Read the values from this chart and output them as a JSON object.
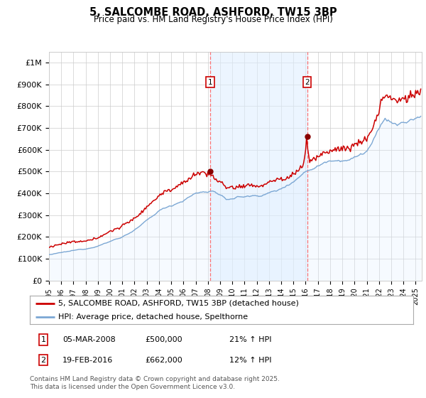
{
  "title": "5, SALCOMBE ROAD, ASHFORD, TW15 3BP",
  "subtitle": "Price paid vs. HM Land Registry's House Price Index (HPI)",
  "ylabel_ticks": [
    "£0",
    "£100K",
    "£200K",
    "£300K",
    "£400K",
    "£500K",
    "£600K",
    "£700K",
    "£800K",
    "£900K",
    "£1M"
  ],
  "ytick_values": [
    0,
    100000,
    200000,
    300000,
    400000,
    500000,
    600000,
    700000,
    800000,
    900000,
    1000000
  ],
  "ylim": [
    0,
    1050000
  ],
  "xlim_start": 1995.0,
  "xlim_end": 2025.5,
  "sale1_x": 2008.17,
  "sale1_y": 500000,
  "sale2_x": 2016.12,
  "sale2_y": 662000,
  "legend_line1": "5, SALCOMBE ROAD, ASHFORD, TW15 3BP (detached house)",
  "legend_line2": "HPI: Average price, detached house, Spelthorne",
  "table_row1": [
    "1",
    "05-MAR-2008",
    "£500,000",
    "21% ↑ HPI"
  ],
  "table_row2": [
    "2",
    "19-FEB-2016",
    "£662,000",
    "12% ↑ HPI"
  ],
  "footnote": "Contains HM Land Registry data © Crown copyright and database right 2025.\nThis data is licensed under the Open Government Licence v3.0.",
  "price_color": "#cc0000",
  "hpi_color": "#7ba7d4",
  "hpi_fill_color": "#ddeeff",
  "vline_color": "#ff6666",
  "background_color": "#ffffff",
  "grid_color": "#cccccc",
  "sale_marker_color": "#880000"
}
